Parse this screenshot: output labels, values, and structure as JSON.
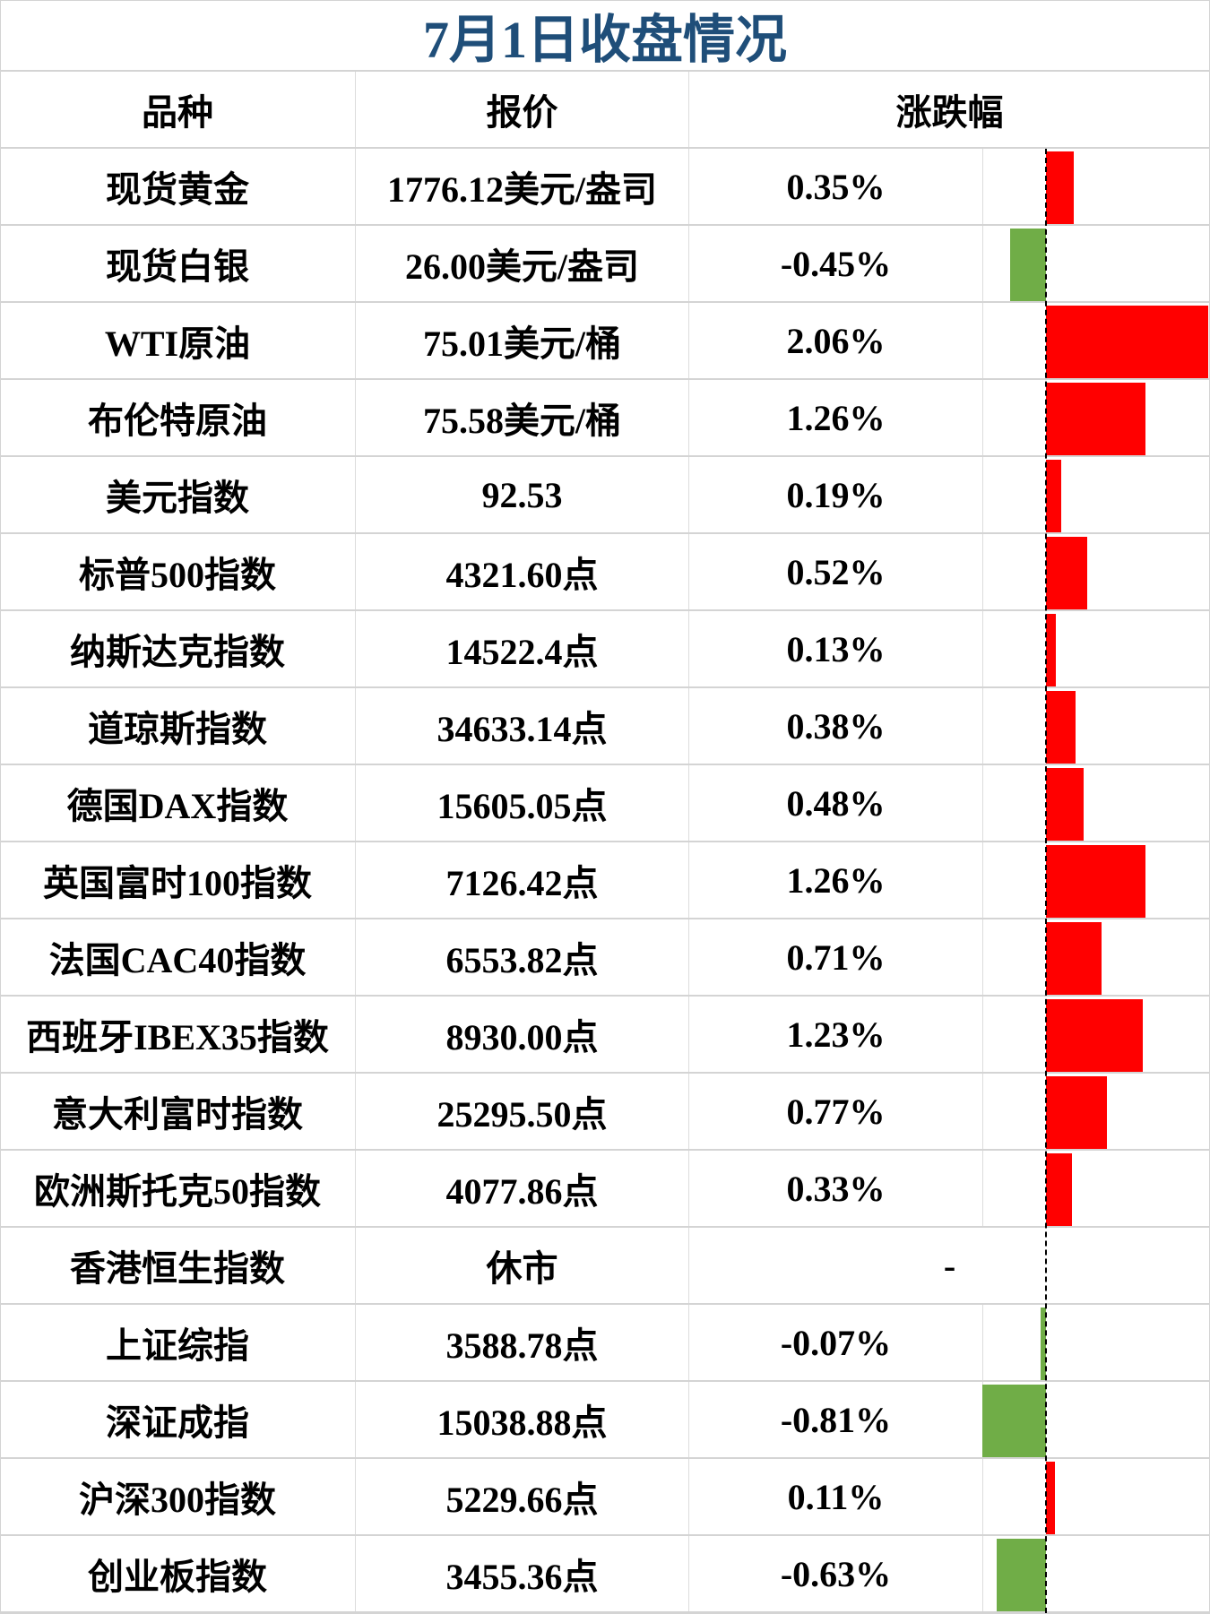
{
  "title": "7月1日收盘情况",
  "headers": {
    "name": "品种",
    "price": "报价",
    "change": "涨跌幅"
  },
  "colors": {
    "up": "#ff0000",
    "down": "#70ad47",
    "title": "#1f4e79"
  },
  "rows": [
    {
      "name": "现货黄金",
      "price": "1776.12美元/盎司",
      "change": "0.35%",
      "value": 0.35
    },
    {
      "name": "现货白银",
      "price": "26.00美元/盎司",
      "change": "-0.45%",
      "value": -0.45
    },
    {
      "name": "WTI原油",
      "price": "75.01美元/桶",
      "change": "2.06%",
      "value": 2.06
    },
    {
      "name": "布伦特原油",
      "price": "75.58美元/桶",
      "change": "1.26%",
      "value": 1.26
    },
    {
      "name": "美元指数",
      "price": "92.53",
      "change": "0.19%",
      "value": 0.19
    },
    {
      "name": "标普500指数",
      "price": "4321.60点",
      "change": "0.52%",
      "value": 0.52
    },
    {
      "name": "纳斯达克指数",
      "price": "14522.4点",
      "change": "0.13%",
      "value": 0.13
    },
    {
      "name": "道琼斯指数",
      "price": "34633.14点",
      "change": "0.38%",
      "value": 0.38
    },
    {
      "name": "德国DAX指数",
      "price": "15605.05点",
      "change": "0.48%",
      "value": 0.48
    },
    {
      "name": "英国富时100指数",
      "price": "7126.42点",
      "change": "1.26%",
      "value": 1.26
    },
    {
      "name": "法国CAC40指数",
      "price": "6553.82点",
      "change": "0.71%",
      "value": 0.71
    },
    {
      "name": "西班牙IBEX35指数",
      "price": "8930.00点",
      "change": "1.23%",
      "value": 1.23
    },
    {
      "name": "意大利富时指数",
      "price": "25295.50点",
      "change": "0.77%",
      "value": 0.77
    },
    {
      "name": "欧洲斯托克50指数",
      "price": "4077.86点",
      "change": "0.33%",
      "value": 0.33
    },
    {
      "name": "香港恒生指数",
      "price": "休市",
      "change": "-",
      "value": null
    },
    {
      "name": "上证综指",
      "price": "3588.78点",
      "change": "-0.07%",
      "value": -0.07
    },
    {
      "name": "深证成指",
      "price": "15038.88点",
      "change": "-0.81%",
      "value": -0.81
    },
    {
      "name": "沪深300指数",
      "price": "5229.66点",
      "change": "0.11%",
      "value": 0.11
    },
    {
      "name": "创业板指数",
      "price": "3455.36点",
      "change": "-0.63%",
      "value": -0.63
    }
  ]
}
